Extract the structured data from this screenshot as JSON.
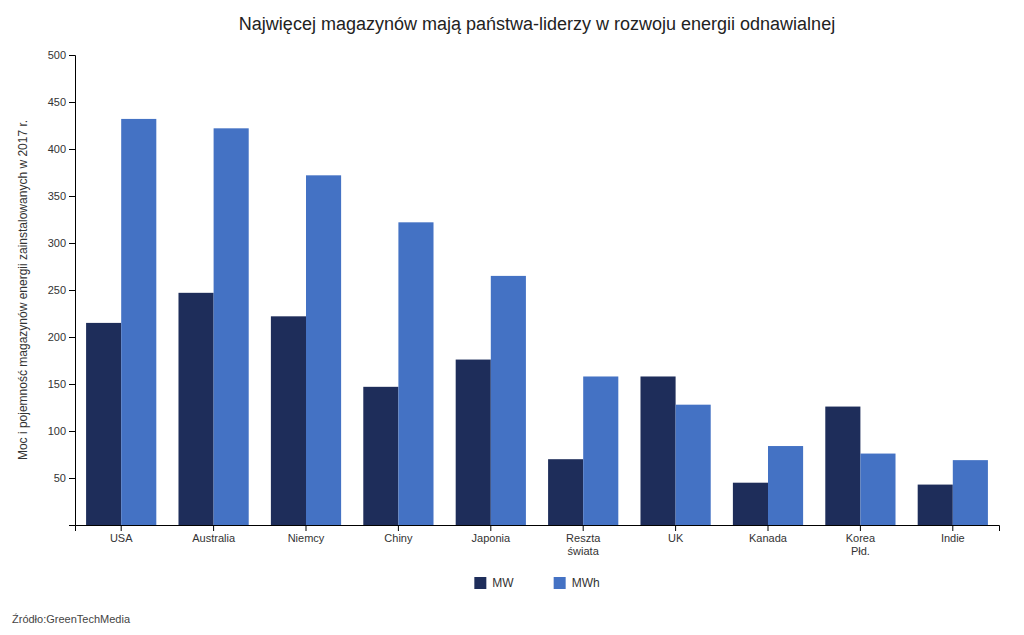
{
  "chart_data": {
    "type": "bar",
    "title": "Najwięcej magazynów mają państwa-liderzy w rozwoju energii odnawialnej",
    "ylabel": "Moc i pojemność magazynów energii zainstalowanych w 2017 r.",
    "source": "Źródło:GreenTechMedia",
    "categories": [
      "USA",
      "Australia",
      "Niemcy",
      "Chiny",
      "Japonia",
      "Reszta\nświata",
      "UK",
      "Kanada",
      "Korea\nPłd.",
      "Indie"
    ],
    "series": [
      {
        "name": "MW",
        "color": "#1e2d5a",
        "values": [
          215,
          247,
          222,
          147,
          176,
          70,
          158,
          45,
          126,
          43
        ]
      },
      {
        "name": "MWh",
        "color": "#4472c4",
        "values": [
          432,
          422,
          372,
          322,
          265,
          158,
          128,
          84,
          76,
          69
        ]
      }
    ],
    "ylim": [
      0,
      500
    ],
    "yticks": [
      50,
      100,
      150,
      200,
      250,
      300,
      350,
      400,
      450,
      500
    ],
    "grid": false,
    "legend": "bottom"
  }
}
